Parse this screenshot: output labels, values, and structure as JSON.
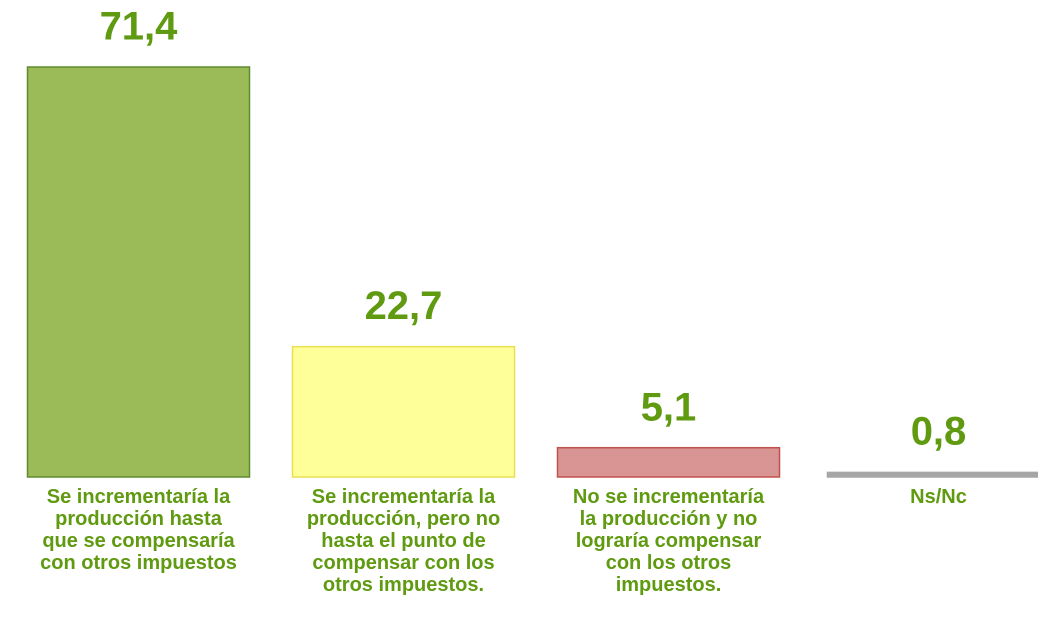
{
  "chart_data": {
    "type": "bar",
    "categories": [
      "Se incrementaría la\nproducción hasta\nque se compensaría\ncon otros impuestos",
      "Se incrementaría la\nproducción, pero no\nhasta el punto de\ncompensar con los\notros impuestos.",
      "No se incrementaría\nla producción y no\nlograría compensar\ncon los otros\nimpuestos.",
      "Ns/Nc"
    ],
    "values": [
      71.4,
      22.7,
      5.1,
      0.8
    ],
    "value_labels": [
      "71,4",
      "22,7",
      "5,1",
      "0,8"
    ],
    "colors": [
      "#9bbb59",
      "#ffff99",
      "#d99594",
      "#a6a6a6"
    ],
    "label_color": "#5f9a10"
  }
}
